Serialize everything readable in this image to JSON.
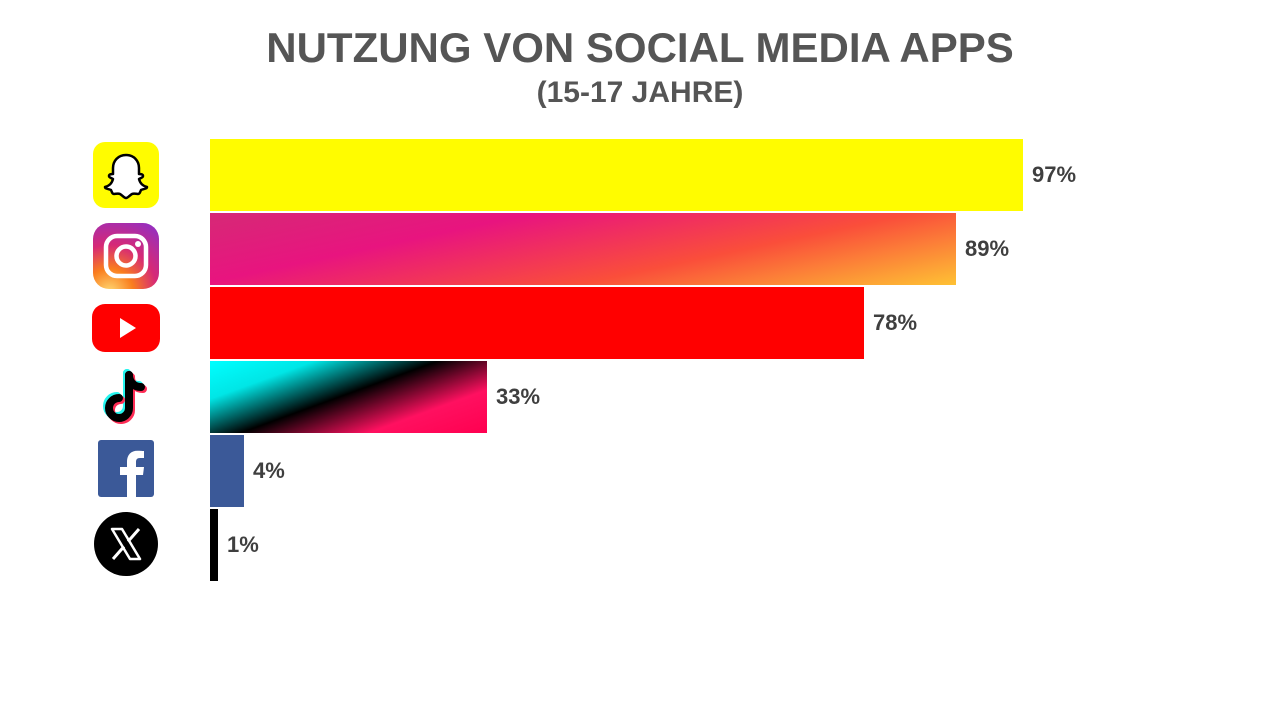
{
  "chart_data": {
    "type": "bar",
    "orientation": "horizontal",
    "title": "NUTZUNG VON SOCIAL MEDIA APPS",
    "subtitle": "(15-17 JAHRE)",
    "categories": [
      "Snapchat",
      "Instagram",
      "YouTube",
      "TikTok",
      "Facebook",
      "X"
    ],
    "values": [
      97,
      89,
      78,
      33,
      4,
      1
    ],
    "value_labels": [
      "97%",
      "89%",
      "78%",
      "33%",
      "4%",
      "1%"
    ],
    "category_icons": [
      "snapchat-icon",
      "instagram-icon",
      "youtube-icon",
      "tiktok-icon",
      "facebook-icon",
      "x-icon"
    ],
    "xlim": [
      0,
      100
    ],
    "grid": false,
    "legend": "none",
    "colors": {
      "Snapchat": "#FFFC00",
      "Instagram": [
        "#FEDA75",
        "#FA7E1E",
        "#D62976",
        "#962FBF"
      ],
      "YouTube": "#FF0000",
      "TikTok": [
        "#00F2EA",
        "#000000",
        "#FF0050"
      ],
      "Facebook": "#3B5998",
      "X": "#000000"
    }
  }
}
